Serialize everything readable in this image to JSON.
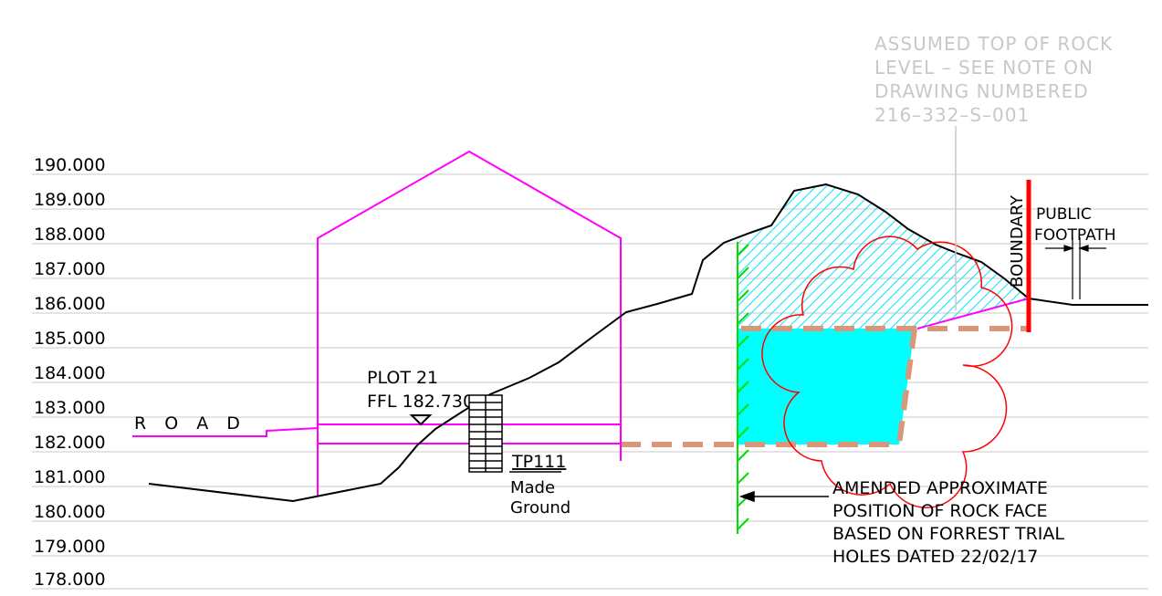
{
  "levels": [
    {
      "text": "190.000",
      "y": 190
    },
    {
      "text": "189.000",
      "y": 189
    },
    {
      "text": "188.000",
      "y": 188
    },
    {
      "text": "187.000",
      "y": 187
    },
    {
      "text": "186.000",
      "y": 186
    },
    {
      "text": "185.000",
      "y": 185
    },
    {
      "text": "184.000",
      "y": 184
    },
    {
      "text": "183.000",
      "y": 183
    },
    {
      "text": "182.000",
      "y": 182
    },
    {
      "text": "181.000",
      "y": 181
    },
    {
      "text": "180.000",
      "y": 180
    },
    {
      "text": "179.000",
      "y": 179
    },
    {
      "text": "178.000",
      "y": 178
    }
  ],
  "labels": {
    "road": "R O A D",
    "plot": "PLOT 21",
    "ffl": "FFL 182.730",
    "test_pit": "TP111",
    "made": "Made",
    "ground": "Ground",
    "boundary": "BOUNDARY",
    "public": "PUBLIC",
    "footpath": "FOOTPATH"
  },
  "note_rock": [
    "ASSUMED TOP OF ROCK",
    "LEVEL – SEE NOTE ON",
    "DRAWING NUMBERED",
    "216–332–S–001"
  ],
  "note_amended": [
    "AMENDED APPROXIMATE",
    "POSITION OF ROCK FACE",
    "BASED ON FORREST TRIAL",
    "HOLES DATED 22/02/17"
  ],
  "colors": {
    "building": "#ff00ff",
    "ground_line": "#000000",
    "rock_fill": "#00ffff",
    "rock_face": "#00ff00",
    "revision_cloud": "#ff0000",
    "boundary": "#ff0000",
    "dashed_level": "#d99679",
    "note_text": "#c8c8c8"
  }
}
